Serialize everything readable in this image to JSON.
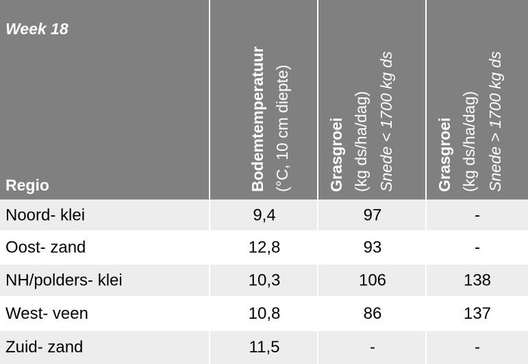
{
  "header": {
    "week": "Week 18",
    "region": "Regio",
    "columns": [
      {
        "lines": [
          "Bodemtemperatuur",
          "(°C, 10 cm diepte)"
        ]
      },
      {
        "lines": [
          "Grasgroei",
          "(kg ds/ha/dag)",
          "Snede < 1700 kg ds"
        ]
      },
      {
        "lines": [
          "Grasgroei",
          "(kg ds/ha/dag)",
          "Snede > 1700 kg ds"
        ]
      }
    ]
  },
  "table": {
    "rows": [
      [
        "Noord- klei",
        "9,4",
        "97",
        "-"
      ],
      [
        "Oost- zand",
        "12,8",
        "93",
        "-"
      ],
      [
        "NH/polders- klei",
        "10,3",
        "106",
        "138"
      ],
      [
        "West- veen",
        "10,8",
        "86",
        "137"
      ],
      [
        "Zuid- zand",
        "11,5",
        "-",
        "-"
      ]
    ]
  }
}
